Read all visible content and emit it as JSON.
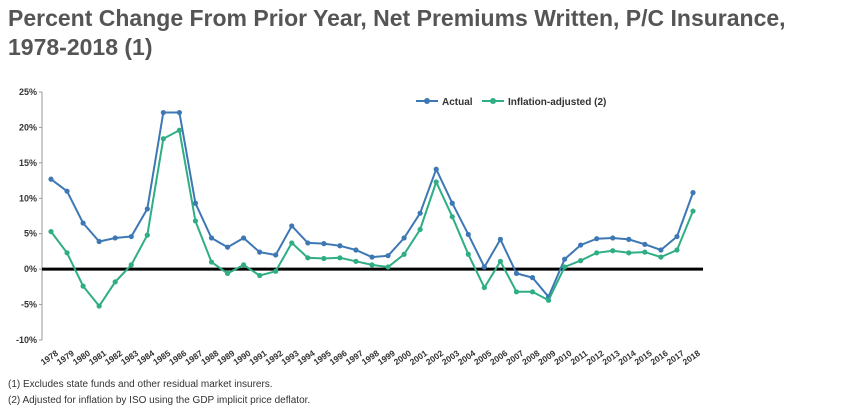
{
  "title": "Percent Change From Prior Year, Net Premiums Written, P/C Insurance, 1978-2018 (1)",
  "footnotes": [
    "(1) Excludes state funds and other residual market insurers.",
    "(2) Adjusted for inflation by ISO using the GDP implicit price deflator."
  ],
  "colors": {
    "actual": "#3d78b4",
    "inflation": "#2fae85",
    "zero_line": "#000000",
    "text": "#555555"
  },
  "chart_data": {
    "type": "line",
    "x": [
      "1978",
      "1979",
      "1980",
      "1981",
      "1982",
      "1983",
      "1984",
      "1985",
      "1986",
      "1987",
      "1988",
      "1989",
      "1990",
      "1991",
      "1992",
      "1993",
      "1994",
      "1995",
      "1996",
      "1997",
      "1998",
      "1999",
      "2000",
      "2001",
      "2002",
      "2003",
      "2004",
      "2005",
      "2006",
      "2007",
      "2008",
      "2009",
      "2010",
      "2011",
      "2012",
      "2013",
      "2014",
      "2015",
      "2016",
      "2017",
      "2018"
    ],
    "series": [
      {
        "name": "Actual",
        "values": [
          12.7,
          11.0,
          6.5,
          3.9,
          4.4,
          4.6,
          8.5,
          22.1,
          22.1,
          9.3,
          4.4,
          3.1,
          4.4,
          2.4,
          2.0,
          6.1,
          3.7,
          3.6,
          3.3,
          2.7,
          1.7,
          1.9,
          4.4,
          7.9,
          14.1,
          9.3,
          4.9,
          0.3,
          4.2,
          -0.6,
          -1.2,
          -3.9,
          1.4,
          3.4,
          4.3,
          4.4,
          4.2,
          3.5,
          2.7,
          4.6,
          10.8
        ]
      },
      {
        "name": "Inflation-adjusted (2)",
        "values": [
          5.3,
          2.3,
          -2.4,
          -5.2,
          -1.8,
          0.6,
          4.8,
          18.4,
          19.6,
          6.8,
          1.0,
          -0.6,
          0.6,
          -0.9,
          -0.3,
          3.7,
          1.6,
          1.5,
          1.6,
          1.1,
          0.6,
          0.3,
          2.1,
          5.6,
          12.3,
          7.4,
          2.1,
          -2.6,
          1.1,
          -3.2,
          -3.2,
          -4.4,
          0.3,
          1.2,
          2.3,
          2.6,
          2.3,
          2.4,
          1.7,
          2.7,
          8.2
        ]
      }
    ],
    "y_ticks": [
      "25%",
      "20%",
      "15%",
      "10%",
      "5%",
      "0%",
      "-5%",
      "-10%"
    ],
    "ylim": [
      -10,
      25
    ],
    "legend": "top-center",
    "grid": false
  }
}
